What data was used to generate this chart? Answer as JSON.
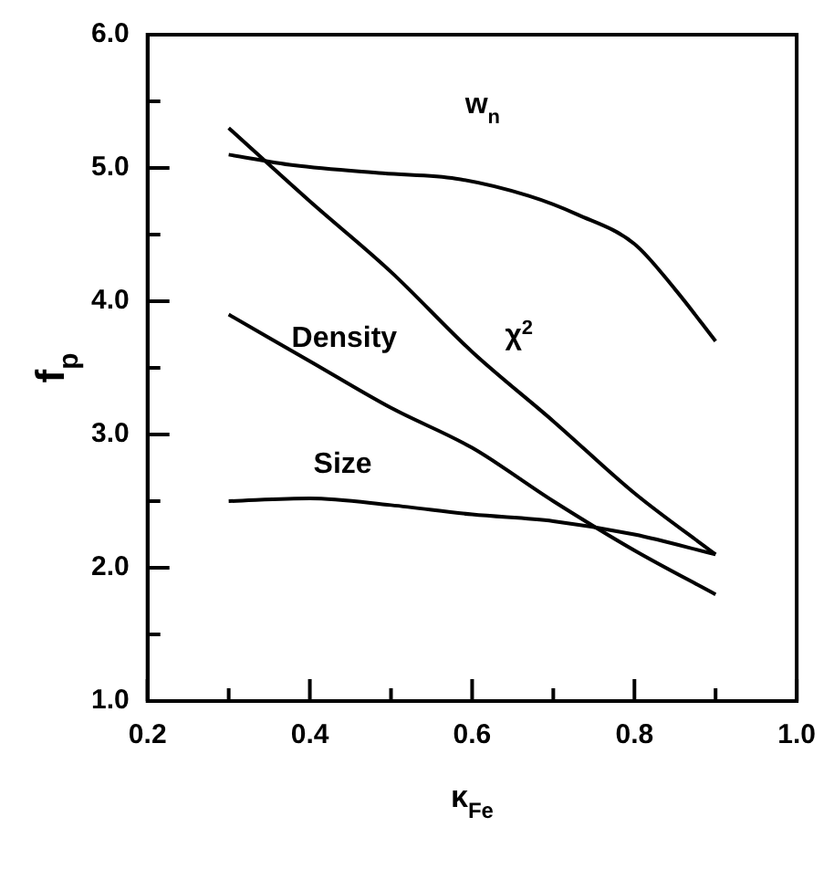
{
  "chart_data": {
    "type": "line",
    "xlabel": "κ$_{Fe}$",
    "ylabel": "f$_{p}$",
    "x": [
      0.3,
      0.4,
      0.5,
      0.6,
      0.7,
      0.8,
      0.9
    ],
    "series": [
      {
        "name": "w$_{n}$",
        "color": "#000000",
        "x": [
          0.3,
          0.38,
          0.49,
          0.58,
          0.67,
          0.73,
          0.8,
          0.85,
          0.9
        ],
        "values": [
          5.1,
          5.02,
          4.96,
          4.92,
          4.79,
          4.65,
          4.43,
          4.09,
          3.7
        ]
      },
      {
        "name": "χ$^{2}$",
        "color": "#000000",
        "values": [
          5.3,
          4.75,
          4.22,
          3.62,
          3.1,
          2.56,
          2.1
        ]
      },
      {
        "name": "Density",
        "color": "#000000",
        "values": [
          3.9,
          3.55,
          3.2,
          2.9,
          2.5,
          2.13,
          1.8
        ]
      },
      {
        "name": "Size",
        "color": "#000000",
        "values": [
          2.5,
          2.52,
          2.47,
          2.4,
          2.35,
          2.25,
          2.1
        ]
      }
    ],
    "xlim": [
      0.2,
      1.0
    ],
    "xticks": [
      {
        "value": 0.2,
        "label": "0.2"
      },
      {
        "value": 0.3,
        "label": null
      },
      {
        "value": 0.4,
        "label": "0.4"
      },
      {
        "value": 0.5,
        "label": null
      },
      {
        "value": 0.6,
        "label": "0.6"
      },
      {
        "value": 0.7,
        "label": null
      },
      {
        "value": 0.8,
        "label": "0.8"
      },
      {
        "value": 0.9,
        "label": null
      },
      {
        "value": 1.0,
        "label": "1.0"
      }
    ],
    "ylim": [
      1.0,
      6.0
    ],
    "yticks": [
      {
        "value": 1,
        "label": "1.0"
      },
      {
        "value": 1.5,
        "label": null
      },
      {
        "value": 2,
        "label": "2.0"
      },
      {
        "value": 2.5,
        "label": null
      },
      {
        "value": 3,
        "label": "3.0"
      },
      {
        "value": 3.5,
        "label": null
      },
      {
        "value": 4,
        "label": "4.0"
      },
      {
        "value": 4.5,
        "label": null
      },
      {
        "value": 5,
        "label": "5.0"
      },
      {
        "value": 5.5,
        "label": null
      },
      {
        "value": 6,
        "label": "6.0"
      }
    ],
    "grid": false,
    "legend": false,
    "marker": "none",
    "line_style": "solid"
  }
}
